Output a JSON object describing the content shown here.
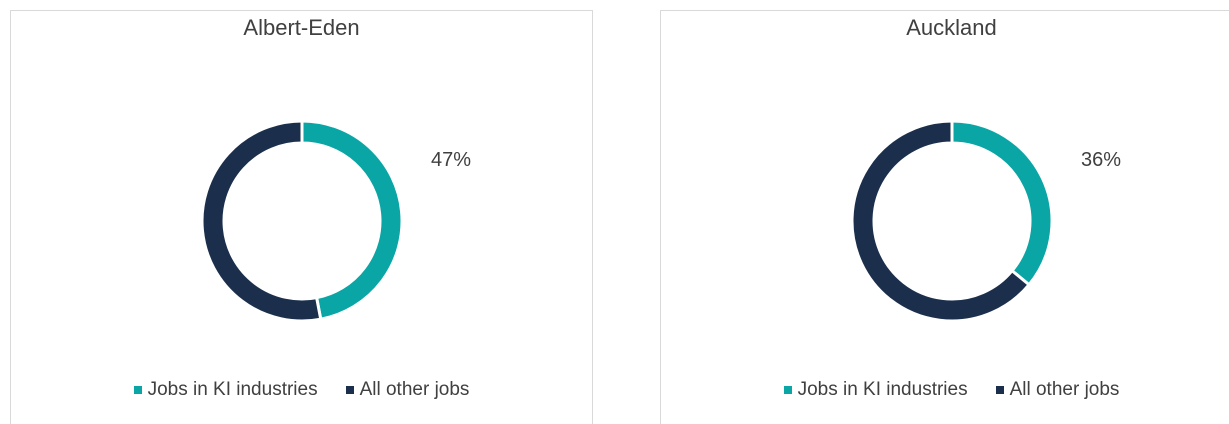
{
  "chart_data": [
    {
      "type": "pie",
      "title": "Albert-Eden",
      "categories": [
        "Jobs in KI industries",
        "All other jobs"
      ],
      "values": [
        47,
        53
      ],
      "data_label": "47%",
      "colors": [
        "#0aa5a5",
        "#1b2f4d"
      ],
      "style": "donut"
    },
    {
      "type": "pie",
      "title": "Auckland",
      "categories": [
        "Jobs in KI industries",
        "All other jobs"
      ],
      "values": [
        36,
        64
      ],
      "data_label": "36%",
      "colors": [
        "#0aa5a5",
        "#1b2f4d"
      ],
      "style": "donut"
    }
  ]
}
